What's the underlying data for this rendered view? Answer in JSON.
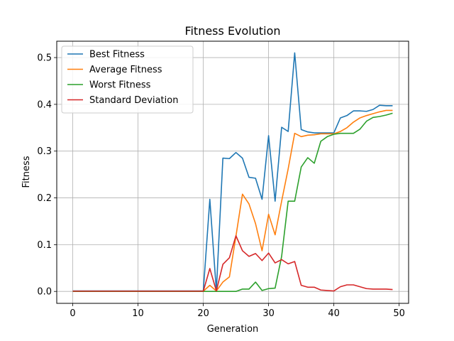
{
  "chart_data": {
    "type": "line",
    "title": "Fitness Evolution",
    "xlabel": "Generation",
    "ylabel": "Fitness",
    "xlim": [
      -2.45,
      51.45
    ],
    "ylim": [
      -0.0255,
      0.535
    ],
    "xticks": [
      0,
      10,
      20,
      30,
      40,
      50
    ],
    "yticks": [
      0.0,
      0.1,
      0.2,
      0.3,
      0.4,
      0.5
    ],
    "xtick_labels": [
      "0",
      "10",
      "20",
      "30",
      "40",
      "50"
    ],
    "ytick_labels": [
      "0.0",
      "0.1",
      "0.2",
      "0.3",
      "0.4",
      "0.5"
    ],
    "grid": true,
    "legend_position": "top-left",
    "x": [
      0,
      1,
      2,
      3,
      4,
      5,
      6,
      7,
      8,
      9,
      10,
      11,
      12,
      13,
      14,
      15,
      16,
      17,
      18,
      19,
      20,
      21,
      22,
      23,
      24,
      25,
      26,
      27,
      28,
      29,
      30,
      31,
      32,
      33,
      34,
      35,
      36,
      37,
      38,
      39,
      40,
      41,
      42,
      43,
      44,
      45,
      46,
      47,
      48,
      49
    ],
    "series": [
      {
        "name": "Best Fitness",
        "color": "#1f77b4",
        "values": [
          0.001,
          0.001,
          0.001,
          0.001,
          0.001,
          0.001,
          0.001,
          0.001,
          0.001,
          0.001,
          0.001,
          0.001,
          0.001,
          0.001,
          0.001,
          0.001,
          0.001,
          0.001,
          0.001,
          0.001,
          0.001,
          0.197,
          0.001,
          0.285,
          0.284,
          0.297,
          0.285,
          0.244,
          0.242,
          0.197,
          0.333,
          0.193,
          0.351,
          0.342,
          0.51,
          0.346,
          0.341,
          0.339,
          0.339,
          0.339,
          0.339,
          0.371,
          0.376,
          0.386,
          0.386,
          0.385,
          0.389,
          0.398,
          0.397,
          0.397
        ]
      },
      {
        "name": "Average Fitness",
        "color": "#ff7f0e",
        "values": [
          0.0005,
          0.0005,
          0.0005,
          0.0005,
          0.0005,
          0.0005,
          0.0005,
          0.0005,
          0.0005,
          0.0005,
          0.0005,
          0.0005,
          0.0005,
          0.0005,
          0.0005,
          0.0005,
          0.0005,
          0.0005,
          0.0005,
          0.0005,
          0.0005,
          0.013,
          0.001,
          0.02,
          0.031,
          0.118,
          0.208,
          0.187,
          0.145,
          0.087,
          0.165,
          0.121,
          0.193,
          0.262,
          0.338,
          0.331,
          0.334,
          0.335,
          0.337,
          0.337,
          0.337,
          0.342,
          0.35,
          0.362,
          0.371,
          0.376,
          0.38,
          0.384,
          0.387,
          0.387
        ]
      },
      {
        "name": "Worst Fitness",
        "color": "#2ca02c",
        "values": [
          0.0,
          0.0,
          0.0,
          0.0,
          0.0,
          0.0,
          0.0,
          0.0,
          0.0,
          0.0,
          0.0,
          0.0,
          0.0,
          0.0,
          0.0,
          0.0,
          0.0,
          0.0,
          0.0,
          0.0,
          0.0,
          0.0,
          0.0,
          0.0,
          0.0,
          0.0,
          0.005,
          0.005,
          0.02,
          0.002,
          0.006,
          0.007,
          0.075,
          0.193,
          0.193,
          0.266,
          0.286,
          0.274,
          0.321,
          0.331,
          0.336,
          0.338,
          0.338,
          0.338,
          0.347,
          0.364,
          0.372,
          0.374,
          0.377,
          0.381
        ]
      },
      {
        "name": "Standard Deviation",
        "color": "#d62728",
        "values": [
          0.0005,
          0.0005,
          0.0005,
          0.0005,
          0.0005,
          0.0005,
          0.0005,
          0.0005,
          0.0005,
          0.0005,
          0.0005,
          0.0005,
          0.0005,
          0.0005,
          0.0005,
          0.0005,
          0.0005,
          0.0005,
          0.0005,
          0.0005,
          0.0005,
          0.049,
          0.001,
          0.058,
          0.072,
          0.119,
          0.087,
          0.075,
          0.081,
          0.066,
          0.082,
          0.061,
          0.068,
          0.059,
          0.064,
          0.013,
          0.009,
          0.009,
          0.003,
          0.002,
          0.001,
          0.01,
          0.014,
          0.014,
          0.01,
          0.006,
          0.005,
          0.005,
          0.005,
          0.004
        ]
      }
    ]
  }
}
